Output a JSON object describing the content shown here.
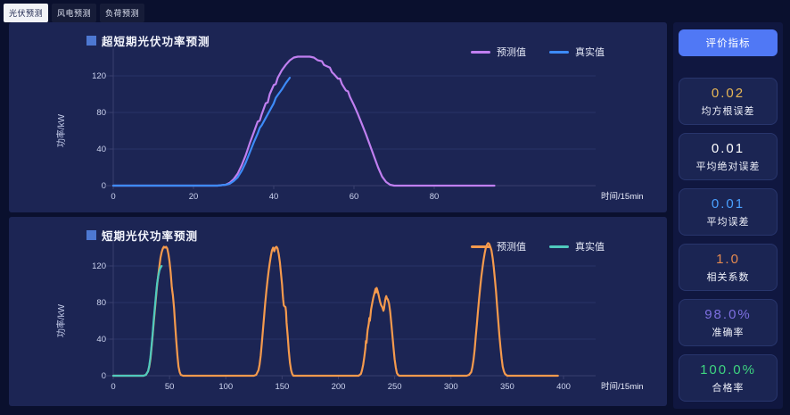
{
  "tabs": [
    {
      "label": "光伏预测",
      "active": true
    },
    {
      "label": "风电预测",
      "active": false
    },
    {
      "label": "负荷预测",
      "active": false
    }
  ],
  "sidebar": {
    "button_label": "评价指标",
    "metrics": [
      {
        "value": "0.02",
        "label": "均方根误差",
        "color": "#e8b755"
      },
      {
        "value": "0.01",
        "label": "平均绝对误差",
        "color": "#ffffff"
      },
      {
        "value": "0.01",
        "label": "平均误差",
        "color": "#4aa0ff"
      },
      {
        "value": "1.0",
        "label": "相关系数",
        "color": "#e58a50"
      },
      {
        "value": "98.0%",
        "label": "准确率",
        "color": "#7d6fe0"
      },
      {
        "value": "100.0%",
        "label": "合格率",
        "color": "#3ed580"
      }
    ]
  },
  "chart_data": [
    {
      "type": "line",
      "title": "超短期光伏功率预测",
      "xlabel": "时间/15min",
      "ylabel": "功率/kW",
      "xlim": [
        0,
        98
      ],
      "ylim": [
        0,
        150
      ],
      "xticks": [
        0,
        20,
        40,
        60,
        80
      ],
      "yticks": [
        0,
        40,
        80,
        120
      ],
      "grid": true,
      "legend_position": "top-right",
      "series": [
        {
          "name": "预测值",
          "color": "#c07ff0",
          "points": [
            [
              0,
              0
            ],
            [
              26,
              0
            ],
            [
              28,
              1
            ],
            [
              29,
              3
            ],
            [
              30,
              7
            ],
            [
              31,
              13
            ],
            [
              32,
              22
            ],
            [
              33,
              33
            ],
            [
              34,
              46
            ],
            [
              35,
              58
            ],
            [
              36,
              70
            ],
            [
              36.5,
              71
            ],
            [
              37,
              78
            ],
            [
              38,
              90
            ],
            [
              38.5,
              91
            ],
            [
              39,
              100
            ],
            [
              40,
              110
            ],
            [
              40.5,
              111
            ],
            [
              41,
              118
            ],
            [
              42,
              126
            ],
            [
              43,
              132
            ],
            [
              44,
              137
            ],
            [
              45,
              140
            ],
            [
              46,
              141
            ],
            [
              49,
              141
            ],
            [
              50,
              140
            ],
            [
              51,
              137
            ],
            [
              52,
              136
            ],
            [
              52.5,
              132
            ],
            [
              53,
              131
            ],
            [
              54,
              129
            ],
            [
              54.5,
              124
            ],
            [
              55,
              122
            ],
            [
              56,
              117
            ],
            [
              56.5,
              117
            ],
            [
              57,
              111
            ],
            [
              58,
              104
            ],
            [
              58.5,
              103
            ],
            [
              59,
              97
            ],
            [
              60,
              88
            ],
            [
              61,
              78
            ],
            [
              62,
              67
            ],
            [
              63,
              56
            ],
            [
              64,
              44
            ],
            [
              65,
              32
            ],
            [
              66,
              20
            ],
            [
              67,
              10
            ],
            [
              68,
              4
            ],
            [
              69,
              1
            ],
            [
              70,
              0
            ],
            [
              95,
              0
            ]
          ]
        },
        {
          "name": "真实值",
          "color": "#3d8bf8",
          "points": [
            [
              0,
              0
            ],
            [
              26,
              0
            ],
            [
              28,
              1
            ],
            [
              29,
              2
            ],
            [
              30,
              5
            ],
            [
              31,
              9
            ],
            [
              32,
              16
            ],
            [
              33,
              25
            ],
            [
              34,
              36
            ],
            [
              35,
              47
            ],
            [
              36,
              57
            ],
            [
              36.5,
              63
            ],
            [
              37,
              66
            ],
            [
              38,
              74
            ],
            [
              39,
              82
            ],
            [
              40,
              90
            ],
            [
              40.5,
              96
            ],
            [
              41,
              99
            ],
            [
              42,
              105
            ],
            [
              43,
              112
            ],
            [
              44,
              118
            ]
          ]
        }
      ]
    },
    {
      "type": "line",
      "title": "短期光伏功率预测",
      "xlabel": "时间/15min",
      "ylabel": "功率/kW",
      "xlim": [
        0,
        405
      ],
      "ylim": [
        0,
        150
      ],
      "xticks": [
        0,
        50,
        100,
        150,
        200,
        250,
        300,
        350,
        400
      ],
      "yticks": [
        0,
        40,
        80,
        120
      ],
      "grid": true,
      "legend_position": "top-right",
      "series": [
        {
          "name": "预测值",
          "color": "#f59a4d",
          "points": [
            [
              0,
              0
            ],
            [
              27,
              0
            ],
            [
              29,
              1
            ],
            [
              31,
              5
            ],
            [
              32,
              10
            ],
            [
              33,
              18
            ],
            [
              34,
              30
            ],
            [
              35,
              44
            ],
            [
              36,
              58
            ],
            [
              37,
              72
            ],
            [
              38,
              86
            ],
            [
              39,
              99
            ],
            [
              40,
              110
            ],
            [
              41,
              120
            ],
            [
              42,
              129
            ],
            [
              43,
              135
            ],
            [
              44,
              139
            ],
            [
              45,
              141
            ],
            [
              46,
              140
            ],
            [
              47,
              141
            ],
            [
              48,
              139
            ],
            [
              49,
              133
            ],
            [
              50,
              125
            ],
            [
              51,
              113
            ],
            [
              52,
              98
            ],
            [
              52.5,
              92
            ],
            [
              53,
              88
            ],
            [
              54,
              74
            ],
            [
              55,
              56
            ],
            [
              56,
              38
            ],
            [
              57,
              22
            ],
            [
              58,
              10
            ],
            [
              59,
              4
            ],
            [
              60,
              1
            ],
            [
              62,
              0
            ],
            [
              125,
              0
            ],
            [
              127,
              1
            ],
            [
              129,
              6
            ],
            [
              130,
              12
            ],
            [
              131,
              22
            ],
            [
              132,
              35
            ],
            [
              133,
              50
            ],
            [
              134,
              65
            ],
            [
              135,
              79
            ],
            [
              136,
              92
            ],
            [
              137,
              104
            ],
            [
              138,
              114
            ],
            [
              139,
              123
            ],
            [
              140,
              131
            ],
            [
              141,
              137
            ],
            [
              142,
              140
            ],
            [
              142.5,
              139
            ],
            [
              143,
              136
            ],
            [
              143.5,
              138
            ],
            [
              144,
              140
            ],
            [
              145,
              141
            ],
            [
              146,
              139
            ],
            [
              147,
              133
            ],
            [
              148,
              124
            ],
            [
              149,
              112
            ],
            [
              150,
              99
            ],
            [
              150.5,
              90
            ],
            [
              151,
              83
            ],
            [
              151.5,
              77
            ],
            [
              152,
              76
            ],
            [
              153,
              75
            ],
            [
              153.5,
              70
            ],
            [
              154,
              58
            ],
            [
              155,
              43
            ],
            [
              156,
              27
            ],
            [
              157,
              14
            ],
            [
              158,
              6
            ],
            [
              159,
              2
            ],
            [
              160,
              0
            ],
            [
              218,
              0
            ],
            [
              220,
              2
            ],
            [
              221,
              6
            ],
            [
              222,
              12
            ],
            [
              223,
              20
            ],
            [
              224,
              30
            ],
            [
              224.5,
              38
            ],
            [
              225,
              36
            ],
            [
              225.5,
              44
            ],
            [
              226,
              50
            ],
            [
              227,
              57
            ],
            [
              227.5,
              63
            ],
            [
              228,
              60
            ],
            [
              228.5,
              66
            ],
            [
              229,
              72
            ],
            [
              230,
              79
            ],
            [
              231,
              85
            ],
            [
              232,
              90
            ],
            [
              233,
              95
            ],
            [
              233.5,
              91
            ],
            [
              234,
              96
            ],
            [
              234.5,
              94
            ],
            [
              235,
              92
            ],
            [
              236,
              87
            ],
            [
              237,
              81
            ],
            [
              238,
              77
            ],
            [
              239,
              75
            ],
            [
              240,
              71
            ],
            [
              240.5,
              73
            ],
            [
              241,
              78
            ],
            [
              241.5,
              82
            ],
            [
              242,
              85
            ],
            [
              242.5,
              87
            ],
            [
              243,
              85
            ],
            [
              244,
              83
            ],
            [
              245,
              79
            ],
            [
              246,
              70
            ],
            [
              247,
              58
            ],
            [
              248,
              44
            ],
            [
              249,
              30
            ],
            [
              250,
              18
            ],
            [
              251,
              9
            ],
            [
              252,
              3
            ],
            [
              253,
              1
            ],
            [
              254,
              0
            ],
            [
              314,
              0
            ],
            [
              316,
              1
            ],
            [
              318,
              4
            ],
            [
              319,
              9
            ],
            [
              320,
              17
            ],
            [
              321,
              28
            ],
            [
              322,
              42
            ],
            [
              323,
              56
            ],
            [
              324,
              70
            ],
            [
              325,
              84
            ],
            [
              326,
              97
            ],
            [
              327,
              108
            ],
            [
              328,
              118
            ],
            [
              329,
              127
            ],
            [
              330,
              134
            ],
            [
              331,
              140
            ],
            [
              332,
              143
            ],
            [
              333,
              145
            ],
            [
              334,
              144
            ],
            [
              335,
              141
            ],
            [
              336,
              137
            ],
            [
              337,
              129
            ],
            [
              338,
              119
            ],
            [
              339,
              106
            ],
            [
              340,
              92
            ],
            [
              341,
              76
            ],
            [
              342,
              60
            ],
            [
              343,
              45
            ],
            [
              344,
              31
            ],
            [
              345,
              19
            ],
            [
              346,
              10
            ],
            [
              347,
              5
            ],
            [
              348,
              2
            ],
            [
              349,
              1
            ],
            [
              350,
              0
            ],
            [
              395,
              0
            ]
          ]
        },
        {
          "name": "真实值",
          "color": "#4fcabe",
          "points": [
            [
              0,
              0
            ],
            [
              27,
              0
            ],
            [
              29,
              1
            ],
            [
              31,
              5
            ],
            [
              32,
              11
            ],
            [
              33,
              20
            ],
            [
              34,
              32
            ],
            [
              35,
              46
            ],
            [
              36,
              61
            ],
            [
              37,
              75
            ],
            [
              38,
              89
            ],
            [
              39,
              101
            ],
            [
              40,
              109
            ],
            [
              41,
              115
            ],
            [
              42,
              118
            ],
            [
              43,
              120
            ]
          ]
        }
      ]
    }
  ]
}
